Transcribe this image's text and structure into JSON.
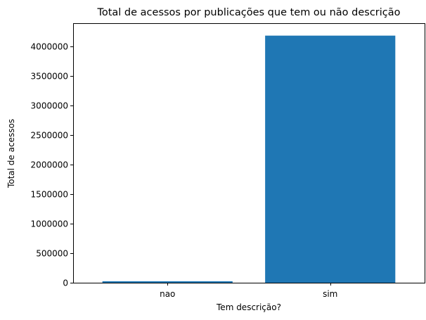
{
  "chart_data": {
    "type": "bar",
    "title": "Total de acessos por publicações que tem ou não descrição",
    "xlabel": "Tem descrição?",
    "ylabel": "Total de acessos",
    "categories": [
      "nao",
      "sim"
    ],
    "values": [
      25000,
      4180000
    ],
    "ylim": [
      0,
      4390000
    ],
    "yticks": [
      0,
      500000,
      1000000,
      1500000,
      2000000,
      2500000,
      3000000,
      3500000,
      4000000
    ],
    "bar_color": "#1f77b4",
    "grid": false
  }
}
